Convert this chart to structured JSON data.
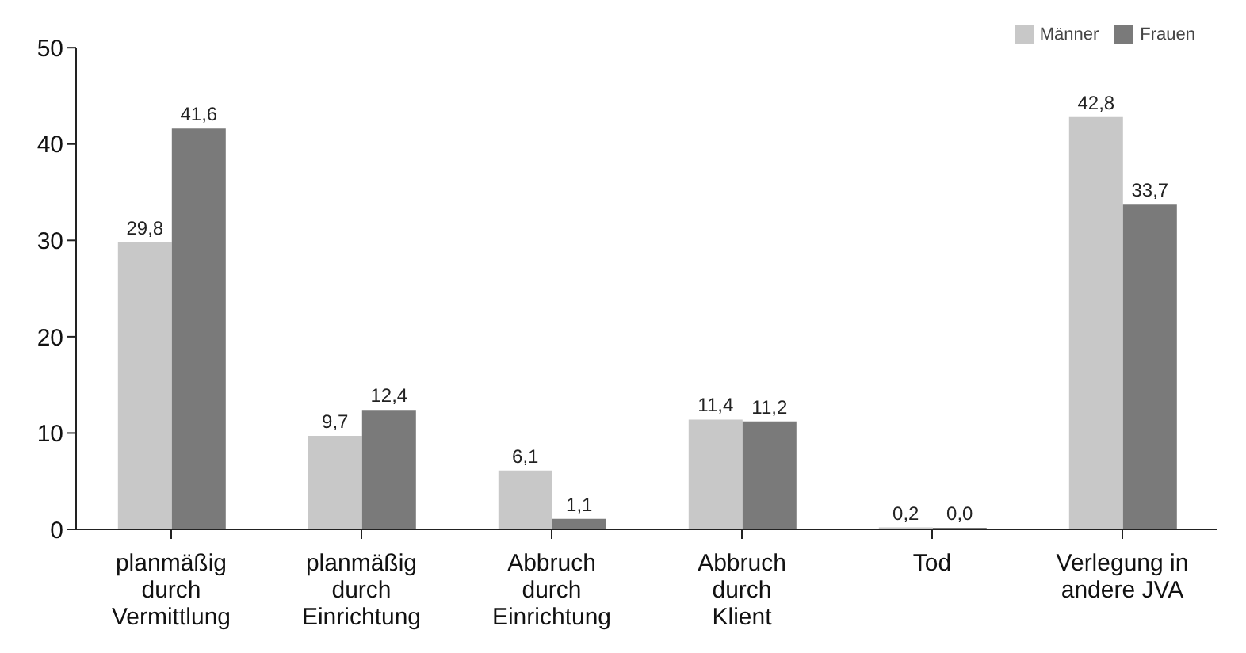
{
  "chart_data": {
    "type": "bar",
    "categories": [
      "planmäßig\ndurch\nVermittlung",
      "planmäßig\ndurch\nEinrichtung",
      "Abbruch\ndurch\nEinrichtung",
      "Abbruch\ndurch\nKlient",
      "Tod",
      "Verlegung in\nandere JVA"
    ],
    "series": [
      {
        "name": "Männer",
        "color": "#c8c8c8",
        "values": [
          29.8,
          9.7,
          6.1,
          11.4,
          0.2,
          42.8
        ],
        "value_labels": [
          "29,8",
          "9,7",
          "6,1",
          "11,4",
          "0,2",
          "42,8"
        ]
      },
      {
        "name": "Frauen",
        "color": "#7a7a7a",
        "values": [
          41.6,
          12.4,
          1.1,
          11.2,
          0.0,
          33.7
        ],
        "value_labels": [
          "41,6",
          "12,4",
          "1,1",
          "11,2",
          "0,0",
          "33,7"
        ]
      }
    ],
    "ylim": [
      0,
      50
    ],
    "yticks": [
      0,
      10,
      20,
      30,
      40,
      50
    ],
    "grid": false,
    "legend": "top right"
  }
}
